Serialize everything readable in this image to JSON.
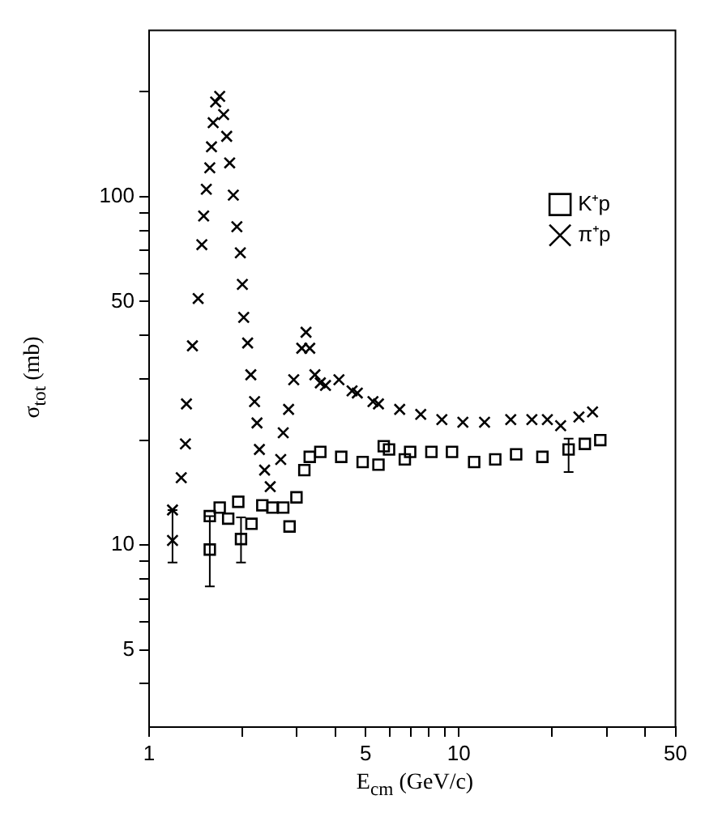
{
  "chart_data": {
    "type": "scatter",
    "xlabel": "E$_{cm}$ (GeV/c)",
    "ylabel": "σ$_{tot}$ (mb)",
    "log": "xy",
    "grid": false,
    "legend": "top right",
    "xlim": [
      1,
      50
    ],
    "xticks": [
      1,
      {
        "value": 2,
        "label": null
      },
      {
        "value": 3,
        "label": null
      },
      {
        "value": 4,
        "label": null
      },
      5,
      {
        "value": 6,
        "label": null
      },
      {
        "value": 7,
        "label": null
      },
      {
        "value": 8,
        "label": null
      },
      {
        "value": 9,
        "label": null
      },
      10,
      {
        "value": 20,
        "label": null
      },
      {
        "value": 30,
        "label": null
      },
      {
        "value": 40,
        "label": null
      },
      50
    ],
    "ylim": [
      3,
      300
    ],
    "yticks": [
      {
        "value": 4,
        "label": null
      },
      5,
      {
        "value": 6,
        "label": null
      },
      {
        "value": 7,
        "label": null
      },
      {
        "value": 8,
        "label": null
      },
      {
        "value": 9,
        "label": null
      },
      10,
      {
        "value": 20,
        "label": null
      },
      {
        "value": 30,
        "label": null
      },
      {
        "value": 40,
        "label": null
      },
      50,
      {
        "value": 60,
        "label": null
      },
      {
        "value": 70,
        "label": null
      },
      {
        "value": 80,
        "label": null
      },
      {
        "value": 90,
        "label": null
      },
      100,
      {
        "value": 200,
        "label": null
      }
    ],
    "series": [
      {
        "name": "K⁺p",
        "type": "scatter",
        "marker": "square",
        "color": "#000000",
        "x": [
          1.57,
          1.57,
          1.69,
          1.8,
          1.94,
          1.98,
          2.14,
          2.32,
          2.5,
          2.71,
          2.84,
          2.99,
          3.17,
          3.3,
          3.57,
          4.17,
          4.89,
          5.5,
          5.72,
          5.95,
          6.69,
          6.96,
          8.15,
          9.5,
          11.2,
          13.1,
          15.3,
          18.6,
          22.6,
          25.5,
          28.6
        ],
        "values": [
          9.7,
          12.1,
          12.8,
          11.9,
          13.3,
          10.4,
          11.5,
          13.0,
          12.8,
          12.8,
          11.3,
          13.7,
          16.4,
          17.9,
          18.5,
          17.9,
          17.3,
          17.0,
          19.2,
          18.8,
          17.6,
          18.5,
          18.5,
          18.5,
          17.3,
          17.6,
          18.2,
          17.9,
          18.8,
          19.5,
          20.0
        ],
        "errors": [
          [
            7.6,
            12.1
          ],
          null,
          null,
          null,
          null,
          [
            8.9,
            12
          ],
          null,
          null,
          null,
          null,
          null,
          null,
          null,
          null,
          null,
          null,
          null,
          null,
          null,
          null,
          null,
          null,
          null,
          null,
          null,
          null,
          null,
          null,
          [
            16.2,
            20.2
          ],
          null,
          null
        ]
      },
      {
        "name": "π⁺p",
        "type": "scatter",
        "marker": "cross",
        "color": "#000000",
        "x": [
          1.19,
          1.19,
          1.27,
          1.31,
          1.32,
          1.38,
          1.44,
          1.48,
          1.5,
          1.53,
          1.57,
          1.59,
          1.61,
          1.64,
          1.69,
          1.74,
          1.78,
          1.82,
          1.87,
          1.92,
          1.97,
          2.0,
          2.02,
          2.08,
          2.13,
          2.19,
          2.23,
          2.27,
          2.36,
          2.46,
          2.66,
          2.71,
          2.82,
          2.93,
          3.11,
          3.21,
          3.3,
          3.43,
          3.57,
          3.71,
          4.1,
          4.52,
          4.7,
          5.28,
          5.5,
          6.44,
          7.53,
          8.81,
          10.3,
          12.1,
          14.7,
          17.2,
          19.3,
          21.3,
          24.4,
          27
        ],
        "values": [
          10.3,
          12.6,
          15.6,
          19.5,
          25.4,
          37.3,
          51,
          72.8,
          88,
          105,
          121,
          139,
          163,
          187,
          194,
          172,
          149,
          125,
          101,
          82,
          69,
          56,
          45,
          38,
          30.8,
          25.8,
          22.4,
          18.8,
          16.4,
          14.7,
          17.6,
          21,
          24.5,
          29.8,
          36.7,
          40.8,
          36.7,
          30.8,
          29.2,
          28.7,
          29.8,
          27.7,
          27.3,
          25.8,
          25.4,
          24.5,
          23.7,
          22.9,
          22.5,
          22.5,
          22.9,
          22.9,
          22.9,
          22.0,
          23.3,
          24.1
        ],
        "errors": [
          [
            8.9,
            12.6
          ],
          null,
          null,
          null,
          null,
          null,
          null,
          null,
          null,
          null,
          null,
          null,
          null,
          null,
          null,
          null,
          null,
          null,
          null,
          null,
          null,
          null,
          null,
          null,
          null,
          null,
          null,
          null,
          null,
          null,
          null,
          null,
          null,
          null,
          null,
          null,
          null,
          null,
          null,
          null,
          null,
          null,
          null,
          null,
          null,
          null,
          null,
          null,
          null,
          null,
          null,
          null,
          null,
          null,
          null,
          null
        ]
      }
    ]
  }
}
